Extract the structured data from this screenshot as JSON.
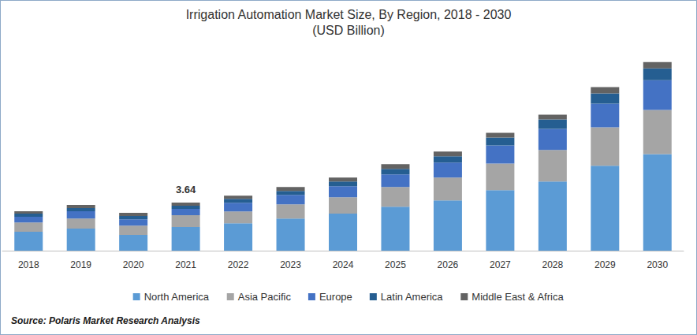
{
  "chart_data": {
    "type": "bar",
    "title": "Irrigation Automation Market Size, By Region, 2018 - 2030",
    "subtitle": "(USD Billion)",
    "source": "Source: Polaris Market Research Analysis",
    "categories": [
      "2018",
      "2019",
      "2020",
      "2021",
      "2022",
      "2023",
      "2024",
      "2025",
      "2026",
      "2027",
      "2028",
      "2029",
      "2030"
    ],
    "series": [
      {
        "name": "North America",
        "color": "#5b9bd5",
        "values": [
          1.43,
          1.67,
          1.19,
          1.79,
          2.08,
          2.44,
          2.8,
          3.33,
          3.81,
          4.58,
          5.24,
          6.43,
          7.32
        ]
      },
      {
        "name": "Asia Pacific",
        "color": "#a5a5a5",
        "values": [
          0.71,
          0.77,
          0.71,
          0.89,
          0.89,
          1.07,
          1.25,
          1.49,
          1.73,
          2.02,
          2.38,
          2.92,
          3.33
        ]
      },
      {
        "name": "Europe",
        "color": "#4472c4",
        "values": [
          0.42,
          0.54,
          0.48,
          0.48,
          0.65,
          0.71,
          0.83,
          0.95,
          1.13,
          1.37,
          1.61,
          1.79,
          2.26
        ]
      },
      {
        "name": "Latin America",
        "color": "#255e91",
        "values": [
          0.24,
          0.24,
          0.24,
          0.24,
          0.3,
          0.3,
          0.36,
          0.42,
          0.48,
          0.6,
          0.71,
          0.77,
          0.89
        ]
      },
      {
        "name": "Middle East & Africa",
        "color": "#636363",
        "values": [
          0.18,
          0.24,
          0.24,
          0.24,
          0.24,
          0.3,
          0.3,
          0.36,
          0.36,
          0.36,
          0.36,
          0.48,
          0.48
        ]
      }
    ],
    "annotation": {
      "category": "2021",
      "value": 3.64
    },
    "ylim": [
      0,
      16
    ],
    "stacked": true,
    "grid": false,
    "legend": "bottom",
    "tick_labels": "x"
  }
}
